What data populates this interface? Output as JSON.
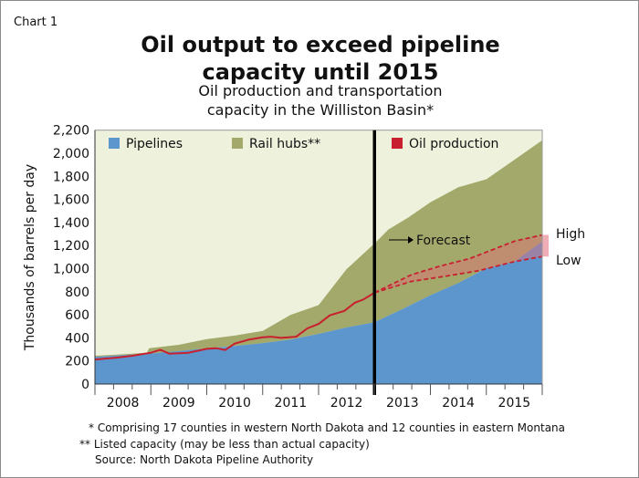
{
  "label": "Chart 1",
  "chart_data": {
    "type": "area",
    "title": "Oil output to exceed pipeline capacity until 2015",
    "subtitle": "Oil production and transportation capacity in the Williston Basin*",
    "ylabel": "Thousands of barrels per day",
    "xlabel": "",
    "ylim": [
      0,
      2200
    ],
    "xlim": [
      2008,
      2016
    ],
    "yticks": [
      "0",
      "200",
      "400",
      "600",
      "800",
      "1,000",
      "1,200",
      "1,400",
      "1,600",
      "1,800",
      "2,000",
      "2,200"
    ],
    "xtick_labels": [
      "2008",
      "2009",
      "2010",
      "2011",
      "2012",
      "2013",
      "2014",
      "2015"
    ],
    "grid": false,
    "legend_position": "top",
    "legend": [
      {
        "name": "Pipelines",
        "color": "#5d96cd"
      },
      {
        "name": "Rail hubs**",
        "color": "#a2a96a"
      },
      {
        "name": "Oil production",
        "color": "#c8202f"
      }
    ],
    "colors": {
      "background": "#eef1dc",
      "pipelines": "#5d96cd",
      "rail": "#a2a96a",
      "oil": "#c8202f",
      "forecast_band": "#e26a78"
    },
    "forecast_start": 2013,
    "annotations": {
      "forecast": "Forecast",
      "high": "High",
      "low": "Low"
    },
    "series": [
      {
        "name": "Pipelines",
        "kind": "stacked-area-base",
        "x": [
          2008,
          2008.5,
          2009,
          2009.5,
          2010,
          2010.5,
          2011,
          2011.5,
          2012,
          2012.5,
          2013,
          2013.5,
          2014,
          2014.5,
          2015,
          2015.5,
          2016
        ],
        "values": [
          235,
          250,
          265,
          285,
          310,
          330,
          355,
          385,
          435,
          490,
          535,
          650,
          770,
          875,
          1005,
          1060,
          1237
        ]
      },
      {
        "name": "Rail hubs**",
        "kind": "total-capacity-top",
        "x": [
          2008,
          2008.5,
          2008.93,
          2008.97,
          2009.5,
          2010,
          2010.5,
          2011,
          2011.5,
          2012,
          2012.5,
          2013,
          2013.25,
          2013.6,
          2014,
          2014.5,
          2015,
          2015.5,
          2016
        ],
        "values": [
          245,
          258,
          272,
          310,
          340,
          390,
          420,
          460,
          600,
          684,
          995,
          1218,
          1340,
          1442,
          1575,
          1705,
          1775,
          1942,
          2113
        ]
      },
      {
        "name": "Oil production",
        "x": [
          2008,
          2008.33,
          2008.67,
          2009,
          2009.17,
          2009.33,
          2009.67,
          2010,
          2010.17,
          2010.33,
          2010.5,
          2010.75,
          2011,
          2011.15,
          2011.33,
          2011.6,
          2011.8,
          2012,
          2012.2,
          2012.46,
          2012.65,
          2012.8,
          2013
        ],
        "values": [
          213,
          226,
          245,
          271,
          297,
          263,
          271,
          305,
          311,
          295,
          350,
          384,
          405,
          410,
          400,
          410,
          482,
          521,
          595,
          634,
          705,
          732,
          792
        ]
      },
      {
        "name": "High",
        "x": [
          2013,
          2013.66,
          2014.2,
          2014.7,
          2015.5,
          2016
        ],
        "values": [
          792,
          947,
          1026,
          1087,
          1237,
          1292
        ]
      },
      {
        "name": "Low",
        "x": [
          2013,
          2013.66,
          2014.3,
          2014.86,
          2015.5,
          2016
        ],
        "values": [
          792,
          889,
          937,
          982,
          1061,
          1105
        ]
      }
    ]
  },
  "footnotes": [
    "* Comprising 17 counties in western North Dakota and 12 counties in eastern Montana",
    "** Listed capacity (may be less than actual capacity)",
    "Source: North Dakota Pipeline Authority"
  ]
}
